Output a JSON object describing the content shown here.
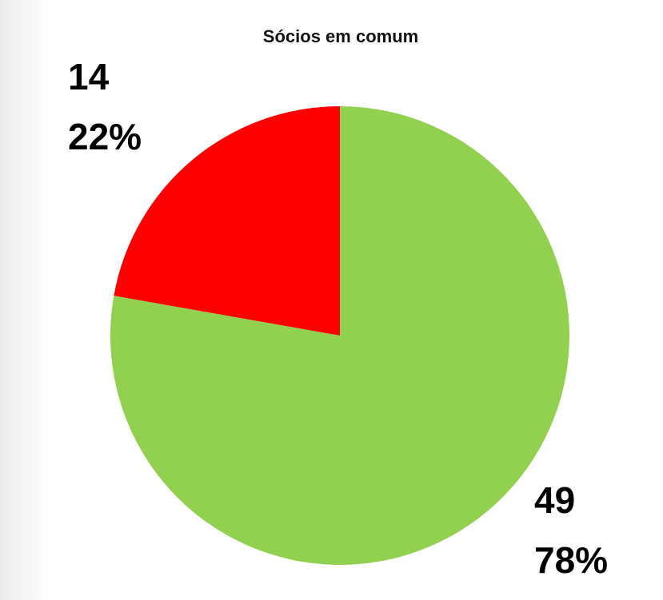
{
  "chart_data": {
    "type": "pie",
    "title": "Sócios em comum",
    "values": [
      49,
      14
    ],
    "colors": [
      "#92d050",
      "#ff0000"
    ],
    "percentages": [
      78,
      22
    ],
    "percentage_labels": [
      "78%",
      "22%"
    ]
  }
}
